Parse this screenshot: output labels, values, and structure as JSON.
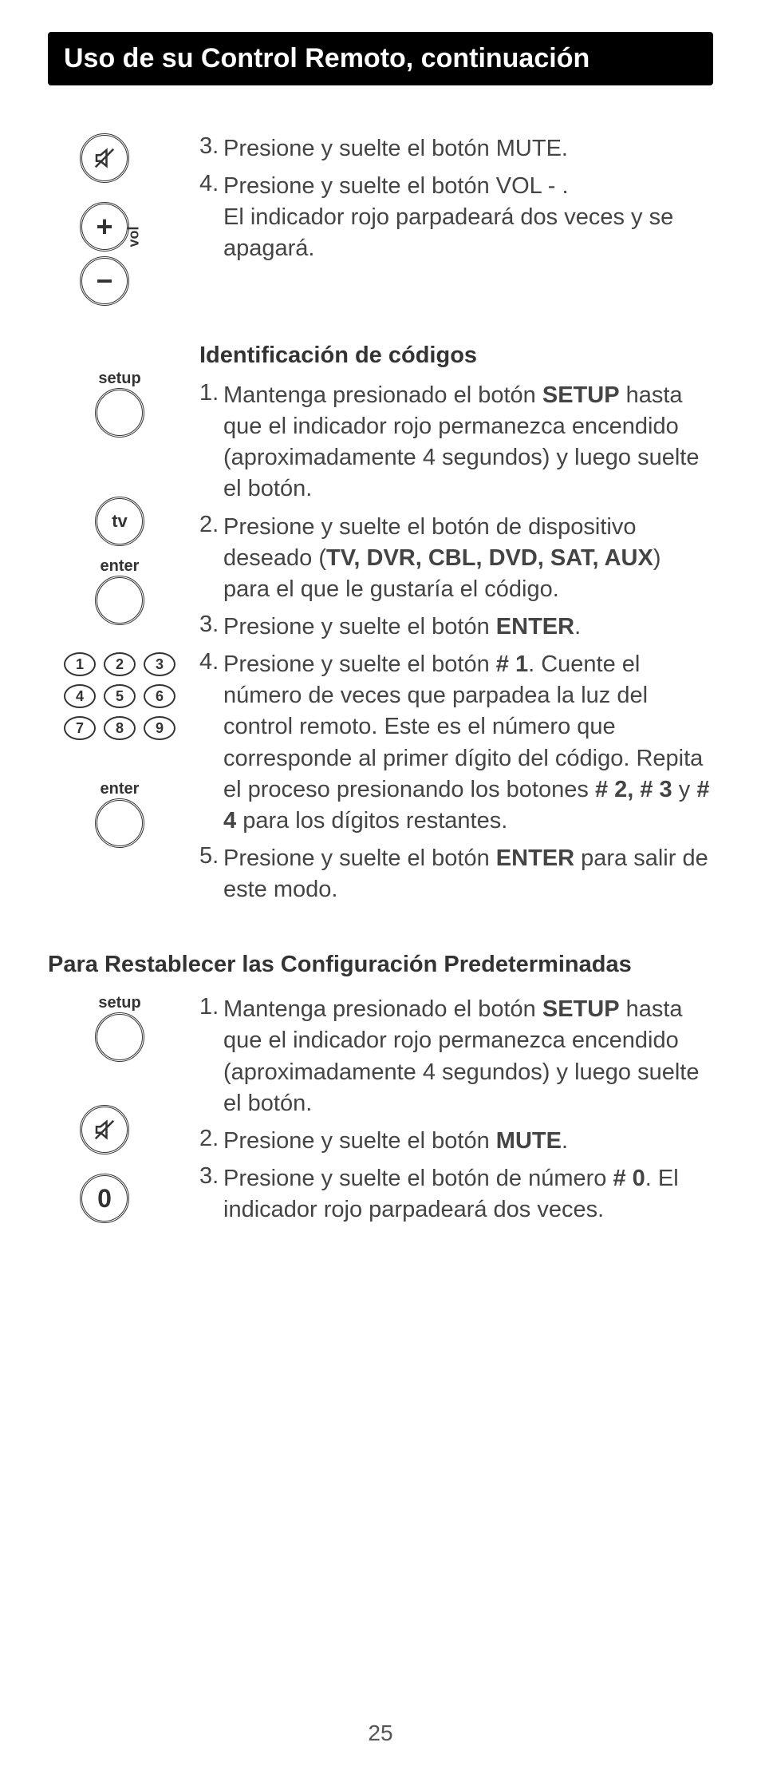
{
  "title": "Uso de su Control Remoto, continuación",
  "page_number": "25",
  "section1_instructions": [
    {
      "num": "3.",
      "html": "Presione y suelte el botón MUTE."
    },
    {
      "num": "4.",
      "html": "Presione y suelte el botón VOL - .<br>El indicador rojo parpadeará dos veces y se apagará."
    }
  ],
  "section2_heading": "Identificación de códigos",
  "section2_instructions": [
    {
      "num": "1.",
      "html": "Mantenga presionado el botón <b>SETUP</b> hasta que el indicador rojo permanezca encendido (aproximadamente 4 segundos) y luego suelte el botón."
    },
    {
      "num": "2.",
      "html": "Presione y suelte el botón de dispositivo deseado (<b>TV, DVR, CBL, DVD, SAT, AUX</b>) para el que le gustaría el código."
    },
    {
      "num": "3.",
      "html": "Presione y suelte el botón <b>ENTER</b>."
    },
    {
      "num": "4.",
      "html": "Presione y suelte el botón <b># 1</b>. Cuente el número de veces que parpadea la luz del control remoto. Este es el número que corresponde al primer dígito del código. Repita el proceso presionando los botones <b># 2, # 3</b> y <b># 4</b> para los dígitos restantes."
    },
    {
      "num": "5.",
      "html": "Presione y suelte el botón <b>ENTER</b> para salir de este modo."
    }
  ],
  "section3_heading": "Para Restablecer las Configuración Predeterminadas",
  "section3_instructions": [
    {
      "num": "1.",
      "html": "Mantenga presionado el botón <b>SETUP</b> hasta que el indicador rojo permanezca encendido (aproximadamente 4 segundos) y luego suelte el botón."
    },
    {
      "num": "2.",
      "html": "Presione y suelte el botón <b>MUTE</b>."
    },
    {
      "num": "3.",
      "html": "Presione y suelte el botón de número <b># 0</b>. El indicador rojo parpadeará dos veces."
    }
  ],
  "icons": {
    "setup": "setup",
    "tv": "tv",
    "enter": "enter",
    "vol": "vol",
    "zero": "0",
    "plus": "+",
    "minus": "−",
    "keypad": [
      "1",
      "2",
      "3",
      "4",
      "5",
      "6",
      "7",
      "8",
      "9"
    ]
  },
  "colors": {
    "title_bg": "#000000",
    "title_fg": "#ffffff",
    "body_fg": "#444444",
    "button_border": "#333333"
  }
}
